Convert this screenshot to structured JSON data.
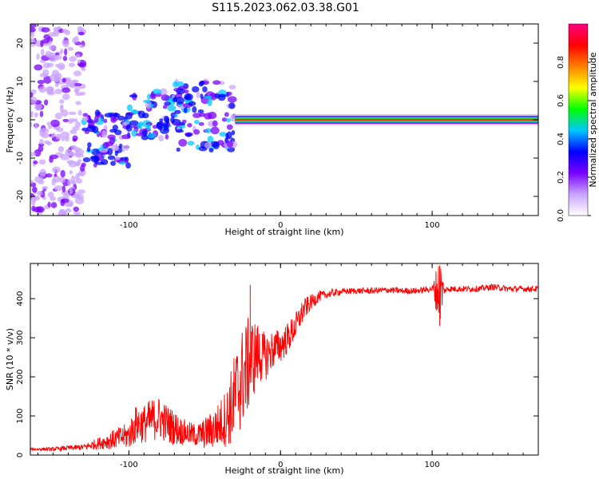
{
  "title": "S115.2023.062.03.38.G01",
  "chart_data": [
    {
      "type": "heatmap",
      "title": "S115.2023.062.03.38.G01",
      "xlabel": "Height of straight line (km)",
      "ylabel": "Frequency (Hz)",
      "xlim": [
        -165,
        170
      ],
      "ylim": [
        -25,
        25
      ],
      "xticks": [
        -100,
        0,
        100
      ],
      "yticks": [
        -20,
        -10,
        0,
        10,
        20
      ],
      "colorbar": {
        "label": "Normalized spectral amplitude",
        "range": [
          0,
          1
        ],
        "ticks": [
          "0.0",
          "0.2",
          "0.4",
          "0.6",
          "0.8"
        ],
        "colors": [
          "#ffffff",
          "#c9a3ff",
          "#7a00ff",
          "#0000ff",
          "#00c8ff",
          "#00ff00",
          "#ffff00",
          "#ff8000",
          "#ff0000",
          "#ff0080"
        ]
      },
      "features": [
        {
          "kind": "noise",
          "x": [
            -165,
            -130
          ],
          "freq_range": [
            -25,
            25
          ],
          "amplitude": 0.15
        },
        {
          "kind": "blobs",
          "x": [
            -130,
            -100
          ],
          "freq": [
            -12,
            2
          ],
          "amplitude": 0.3
        },
        {
          "kind": "blobs",
          "x": [
            -100,
            -60
          ],
          "freq": [
            -5,
            8
          ],
          "amplitude": 0.35
        },
        {
          "kind": "blobs",
          "x": [
            -70,
            -30
          ],
          "freq": [
            -8,
            10
          ],
          "amplitude": 0.3
        },
        {
          "kind": "band",
          "x": [
            -30,
            170
          ],
          "freq": 0,
          "amplitude": 0.95
        }
      ],
      "grid": false
    },
    {
      "type": "line",
      "xlabel": "Height of straight line (km)",
      "ylabel": "SNR (10 * v/v)",
      "xlim": [
        -165,
        170
      ],
      "ylim": [
        0,
        490
      ],
      "xticks": [
        -100,
        0,
        100
      ],
      "yticks": [
        0,
        100,
        200,
        300,
        400
      ],
      "color": "#ff0000",
      "x": [
        -165,
        -150,
        -140,
        -130,
        -120,
        -110,
        -100,
        -95,
        -90,
        -85,
        -80,
        -75,
        -70,
        -65,
        -60,
        -55,
        -50,
        -45,
        -40,
        -35,
        -30,
        -25,
        -20,
        -15,
        -10,
        -5,
        0,
        5,
        10,
        15,
        20,
        25,
        30,
        35,
        40,
        50,
        60,
        70,
        80,
        90,
        100,
        104,
        106,
        108,
        110,
        120,
        130,
        140,
        150,
        160,
        170
      ],
      "y": [
        15,
        15,
        18,
        20,
        30,
        40,
        50,
        80,
        80,
        90,
        95,
        80,
        70,
        60,
        55,
        50,
        55,
        65,
        80,
        100,
        150,
        200,
        240,
        260,
        250,
        270,
        280,
        300,
        330,
        370,
        390,
        405,
        410,
        415,
        418,
        420,
        420,
        422,
        420,
        420,
        425,
        420,
        420,
        420,
        425,
        425,
        425,
        430,
        425,
        425,
        425
      ],
      "noise": [
        3,
        5,
        6,
        8,
        15,
        25,
        35,
        50,
        50,
        55,
        55,
        50,
        45,
        35,
        30,
        30,
        40,
        50,
        60,
        80,
        120,
        130,
        120,
        80,
        60,
        50,
        45,
        40,
        35,
        30,
        20,
        15,
        10,
        10,
        8,
        8,
        8,
        8,
        8,
        8,
        8,
        80,
        80,
        8,
        8,
        8,
        8,
        8,
        8,
        8,
        8
      ],
      "spikes": [
        {
          "x": -20,
          "y": 435
        },
        {
          "x": 105,
          "y": 485
        },
        {
          "x": 105,
          "y": 330
        }
      ],
      "grid": false
    }
  ]
}
